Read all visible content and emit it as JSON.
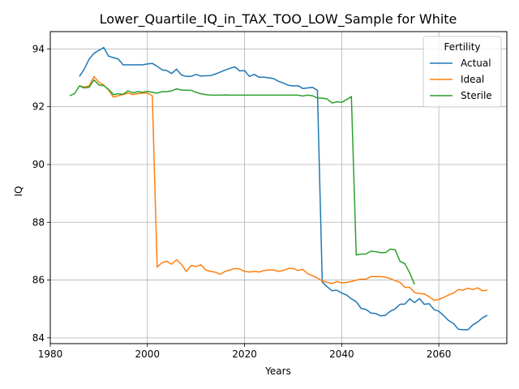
{
  "chart_data": {
    "type": "line",
    "title": "Lower_Quartile_IQ_in_TAX_TOO_LOW_Sample for White",
    "xlabel": "Years",
    "ylabel": "IQ",
    "xlim": [
      1980,
      2074
    ],
    "ylim": [
      83.8,
      94.6
    ],
    "xticks": [
      1980,
      2000,
      2020,
      2040,
      2060
    ],
    "yticks": [
      84,
      86,
      88,
      90,
      92,
      94
    ],
    "grid": true,
    "legend": {
      "title": "Fertility",
      "position": "top-right"
    },
    "series": [
      {
        "name": "Actual",
        "color": "#1f77b4",
        "points": [
          [
            1986,
            93.05
          ],
          [
            1987,
            93.3
          ],
          [
            1988,
            93.65
          ],
          [
            1989,
            93.85
          ],
          [
            1990,
            93.95
          ],
          [
            1991,
            94.05
          ],
          [
            1992,
            93.75
          ],
          [
            1993,
            93.7
          ],
          [
            1994,
            93.65
          ],
          [
            1995,
            93.45
          ],
          [
            1996,
            93.45
          ],
          [
            1997,
            93.45
          ],
          [
            1998,
            93.45
          ],
          [
            1999,
            93.45
          ],
          [
            2000,
            93.48
          ],
          [
            2001,
            93.5
          ],
          [
            2002,
            93.4
          ],
          [
            2003,
            93.28
          ],
          [
            2004,
            93.25
          ],
          [
            2005,
            93.15
          ],
          [
            2006,
            93.3
          ],
          [
            2007,
            93.1
          ],
          [
            2008,
            93.05
          ],
          [
            2009,
            93.05
          ],
          [
            2010,
            93.12
          ],
          [
            2011,
            93.06
          ],
          [
            2012,
            93.07
          ],
          [
            2013,
            93.08
          ],
          [
            2014,
            93.13
          ],
          [
            2015,
            93.2
          ],
          [
            2016,
            93.27
          ],
          [
            2017,
            93.33
          ],
          [
            2018,
            93.38
          ],
          [
            2019,
            93.24
          ],
          [
            2020,
            93.25
          ],
          [
            2021,
            93.05
          ],
          [
            2022,
            93.12
          ],
          [
            2023,
            93.02
          ],
          [
            2024,
            93.02
          ],
          [
            2025,
            93.0
          ],
          [
            2026,
            92.97
          ],
          [
            2027,
            92.88
          ],
          [
            2028,
            92.82
          ],
          [
            2029,
            92.74
          ],
          [
            2030,
            92.72
          ],
          [
            2031,
            92.73
          ],
          [
            2032,
            92.63
          ],
          [
            2033,
            92.65
          ],
          [
            2034,
            92.67
          ],
          [
            2035,
            92.57
          ],
          [
            2036,
            85.93
          ],
          [
            2037,
            85.77
          ],
          [
            2038,
            85.63
          ],
          [
            2039,
            85.65
          ],
          [
            2040,
            85.55
          ],
          [
            2041,
            85.48
          ],
          [
            2042,
            85.35
          ],
          [
            2043,
            85.25
          ],
          [
            2044,
            85.02
          ],
          [
            2045,
            84.98
          ],
          [
            2046,
            84.86
          ],
          [
            2047,
            84.84
          ],
          [
            2048,
            84.76
          ],
          [
            2049,
            84.78
          ],
          [
            2050,
            84.92
          ],
          [
            2051,
            85.0
          ],
          [
            2052,
            85.16
          ],
          [
            2053,
            85.17
          ],
          [
            2054,
            85.35
          ],
          [
            2055,
            85.22
          ],
          [
            2056,
            85.36
          ],
          [
            2057,
            85.16
          ],
          [
            2058,
            85.18
          ],
          [
            2059,
            84.98
          ],
          [
            2060,
            84.92
          ],
          [
            2061,
            84.77
          ],
          [
            2062,
            84.6
          ],
          [
            2063,
            84.5
          ],
          [
            2064,
            84.3
          ],
          [
            2065,
            84.28
          ],
          [
            2066,
            84.28
          ],
          [
            2067,
            84.45
          ],
          [
            2068,
            84.55
          ],
          [
            2069,
            84.7
          ],
          [
            2070,
            84.78
          ]
        ]
      },
      {
        "name": "Ideal",
        "color": "#ff7f0e",
        "points": [
          [
            1986,
            92.72
          ],
          [
            1987,
            92.68
          ],
          [
            1988,
            92.72
          ],
          [
            1989,
            93.05
          ],
          [
            1990,
            92.85
          ],
          [
            1991,
            92.75
          ],
          [
            1992,
            92.58
          ],
          [
            1993,
            92.33
          ],
          [
            1994,
            92.38
          ],
          [
            1995,
            92.42
          ],
          [
            1996,
            92.47
          ],
          [
            1997,
            92.42
          ],
          [
            1998,
            92.45
          ],
          [
            1999,
            92.47
          ],
          [
            2000,
            92.47
          ],
          [
            2001,
            92.38
          ],
          [
            2002,
            86.45
          ],
          [
            2003,
            86.6
          ],
          [
            2004,
            86.65
          ],
          [
            2005,
            86.55
          ],
          [
            2006,
            86.7
          ],
          [
            2007,
            86.55
          ],
          [
            2008,
            86.3
          ],
          [
            2009,
            86.5
          ],
          [
            2010,
            86.47
          ],
          [
            2011,
            86.53
          ],
          [
            2012,
            86.35
          ],
          [
            2013,
            86.3
          ],
          [
            2014,
            86.27
          ],
          [
            2015,
            86.2
          ],
          [
            2016,
            86.3
          ],
          [
            2017,
            86.35
          ],
          [
            2018,
            86.4
          ],
          [
            2019,
            86.38
          ],
          [
            2020,
            86.3
          ],
          [
            2021,
            86.28
          ],
          [
            2022,
            86.3
          ],
          [
            2023,
            86.28
          ],
          [
            2024,
            86.33
          ],
          [
            2025,
            86.35
          ],
          [
            2026,
            86.35
          ],
          [
            2027,
            86.3
          ],
          [
            2028,
            86.33
          ],
          [
            2029,
            86.4
          ],
          [
            2030,
            86.4
          ],
          [
            2031,
            86.33
          ],
          [
            2032,
            86.37
          ],
          [
            2033,
            86.22
          ],
          [
            2034,
            86.15
          ],
          [
            2035,
            86.07
          ],
          [
            2036,
            85.97
          ],
          [
            2037,
            85.92
          ],
          [
            2038,
            85.88
          ],
          [
            2039,
            85.95
          ],
          [
            2040,
            85.9
          ],
          [
            2041,
            85.92
          ],
          [
            2042,
            85.95
          ],
          [
            2043,
            86.0
          ],
          [
            2044,
            86.03
          ],
          [
            2045,
            86.03
          ],
          [
            2046,
            86.12
          ],
          [
            2047,
            86.12
          ],
          [
            2048,
            86.12
          ],
          [
            2049,
            86.1
          ],
          [
            2050,
            86.05
          ],
          [
            2051,
            85.98
          ],
          [
            2052,
            85.92
          ],
          [
            2053,
            85.75
          ],
          [
            2054,
            85.75
          ],
          [
            2055,
            85.57
          ],
          [
            2056,
            85.53
          ],
          [
            2057,
            85.52
          ],
          [
            2058,
            85.42
          ],
          [
            2059,
            85.3
          ],
          [
            2060,
            85.33
          ],
          [
            2061,
            85.4
          ],
          [
            2062,
            85.48
          ],
          [
            2063,
            85.55
          ],
          [
            2064,
            85.67
          ],
          [
            2065,
            85.65
          ],
          [
            2066,
            85.72
          ],
          [
            2067,
            85.67
          ],
          [
            2068,
            85.73
          ],
          [
            2069,
            85.63
          ],
          [
            2070,
            85.65
          ]
        ]
      },
      {
        "name": "Sterile",
        "color": "#2ca02c",
        "points": [
          [
            1984,
            92.38
          ],
          [
            1985,
            92.45
          ],
          [
            1986,
            92.72
          ],
          [
            1987,
            92.65
          ],
          [
            1988,
            92.67
          ],
          [
            1989,
            92.93
          ],
          [
            1990,
            92.75
          ],
          [
            1991,
            92.73
          ],
          [
            1992,
            92.6
          ],
          [
            1993,
            92.42
          ],
          [
            1994,
            92.45
          ],
          [
            1995,
            92.43
          ],
          [
            1996,
            92.55
          ],
          [
            1997,
            92.48
          ],
          [
            1998,
            92.52
          ],
          [
            1999,
            92.5
          ],
          [
            2000,
            92.53
          ],
          [
            2001,
            92.5
          ],
          [
            2002,
            92.47
          ],
          [
            2003,
            92.52
          ],
          [
            2004,
            92.52
          ],
          [
            2005,
            92.55
          ],
          [
            2006,
            92.62
          ],
          [
            2007,
            92.58
          ],
          [
            2008,
            92.57
          ],
          [
            2009,
            92.57
          ],
          [
            2010,
            92.5
          ],
          [
            2011,
            92.45
          ],
          [
            2012,
            92.42
          ],
          [
            2013,
            92.4
          ],
          [
            2014,
            92.4
          ],
          [
            2015,
            92.4
          ],
          [
            2016,
            92.41
          ],
          [
            2017,
            92.4
          ],
          [
            2018,
            92.4
          ],
          [
            2019,
            92.4
          ],
          [
            2020,
            92.4
          ],
          [
            2021,
            92.4
          ],
          [
            2022,
            92.4
          ],
          [
            2023,
            92.4
          ],
          [
            2024,
            92.4
          ],
          [
            2025,
            92.4
          ],
          [
            2026,
            92.4
          ],
          [
            2027,
            92.4
          ],
          [
            2028,
            92.4
          ],
          [
            2029,
            92.4
          ],
          [
            2030,
            92.4
          ],
          [
            2031,
            92.4
          ],
          [
            2032,
            92.37
          ],
          [
            2033,
            92.4
          ],
          [
            2034,
            92.38
          ],
          [
            2035,
            92.3
          ],
          [
            2036,
            92.3
          ],
          [
            2037,
            92.27
          ],
          [
            2038,
            92.13
          ],
          [
            2039,
            92.17
          ],
          [
            2040,
            92.15
          ],
          [
            2041,
            92.25
          ],
          [
            2042,
            92.35
          ],
          [
            2043,
            86.87
          ],
          [
            2044,
            86.9
          ],
          [
            2045,
            86.9
          ],
          [
            2046,
            87.0
          ],
          [
            2047,
            86.98
          ],
          [
            2048,
            86.95
          ],
          [
            2049,
            86.95
          ],
          [
            2050,
            87.07
          ],
          [
            2051,
            87.05
          ],
          [
            2052,
            86.65
          ],
          [
            2053,
            86.57
          ],
          [
            2054,
            86.25
          ],
          [
            2055,
            85.85
          ]
        ]
      }
    ]
  }
}
